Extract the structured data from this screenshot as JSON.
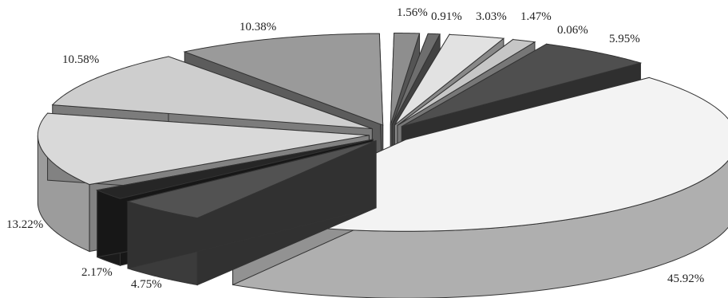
{
  "chart_data": {
    "type": "pie",
    "title": "",
    "slices": [
      {
        "label": "1.56%",
        "value": 1.56,
        "color": "#8e8e8e"
      },
      {
        "label": "0.91%",
        "value": 0.91,
        "color": "#6e6e6e"
      },
      {
        "label": "3.03%",
        "value": 3.03,
        "color": "#e2e2e2"
      },
      {
        "label": "1.47%",
        "value": 1.47,
        "color": "#c6c6c6"
      },
      {
        "label": "0.06%",
        "value": 0.06,
        "color": "#3a3a3a"
      },
      {
        "label": "5.95%",
        "value": 5.95,
        "color": "#4f4f4f"
      },
      {
        "label": "45.92%",
        "value": 45.92,
        "color": "#f3f3f3"
      },
      {
        "label": "4.75%",
        "value": 4.75,
        "color": "#525252"
      },
      {
        "label": "2.17%",
        "value": 2.17,
        "color": "#262626"
      },
      {
        "label": "13.22%",
        "value": 13.22,
        "color": "#d9d9d9"
      },
      {
        "label": "10.58%",
        "value": 10.58,
        "color": "#cecece"
      },
      {
        "label": "10.38%",
        "value": 10.38,
        "color": "#9a9a9a"
      }
    ],
    "style": "3d-exploded-pie"
  }
}
